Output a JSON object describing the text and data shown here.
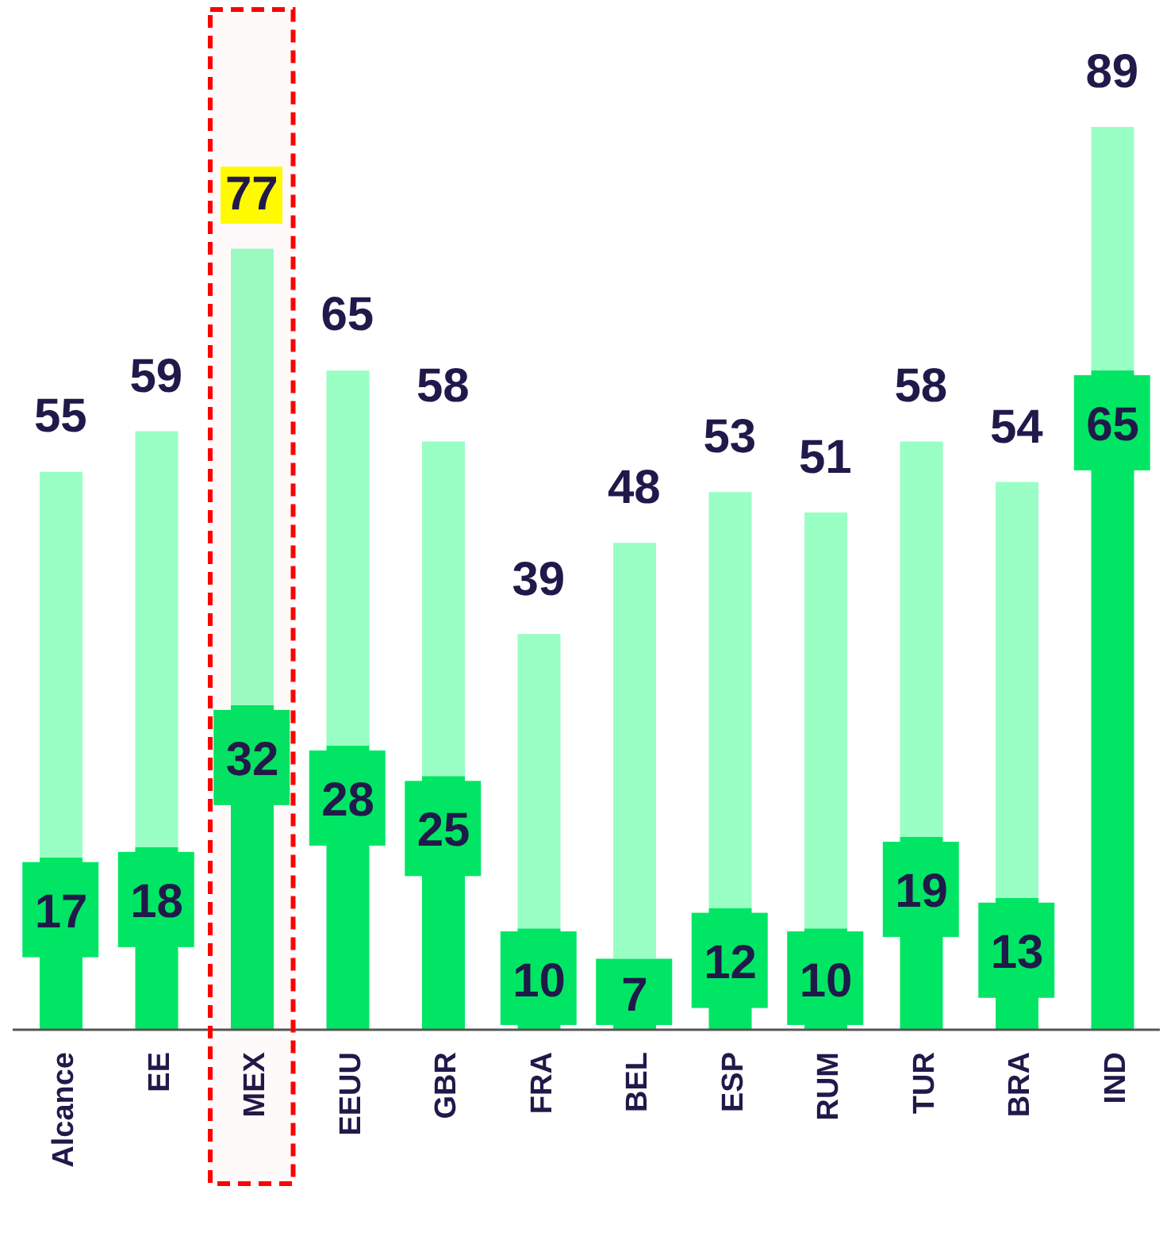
{
  "chart_data": {
    "type": "bar",
    "stacked": true,
    "categories": [
      "Alcance",
      "EE",
      "MEX",
      "EEUU",
      "GBR",
      "FRA",
      "BEL",
      "ESP",
      "RUM",
      "TUR",
      "BRA",
      "IND"
    ],
    "series": [
      {
        "color": "#00e664",
        "values": [
          17,
          18,
          32,
          28,
          25,
          10,
          7,
          12,
          10,
          19,
          13,
          65
        ],
        "value_labels": [
          "17",
          "18",
          "32",
          "28",
          "25",
          "10",
          "7",
          "12",
          "10",
          "19",
          "13",
          "65"
        ]
      },
      {
        "color": "#99ffc4",
        "values": [
          38,
          41,
          45,
          37,
          33,
          29,
          41,
          41,
          41,
          39,
          41,
          24
        ]
      }
    ],
    "totals": [
      "55",
      "59",
      "77",
      "65",
      "58",
      "39",
      "48",
      "53",
      "51",
      "58",
      "54",
      "89"
    ],
    "tick_labels": "x",
    "bands": [
      {
        "axis": "x",
        "from": "MEX",
        "to": "MEX",
        "color": "#ff0000"
      }
    ]
  }
}
